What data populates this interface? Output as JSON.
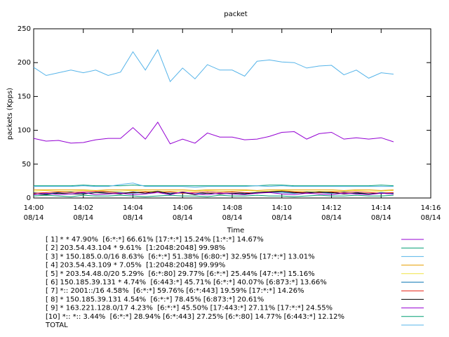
{
  "chart_data": {
    "type": "line",
    "title": "packet",
    "x_label": "Time",
    "y_label": "packets (Kpps)",
    "xlim": [
      0,
      16
    ],
    "ylim": [
      0,
      250
    ],
    "xticks": [
      {
        "value": 0,
        "label": "14:00"
      },
      {
        "value": 2,
        "label": "14:02"
      },
      {
        "value": 4,
        "label": "14:04"
      },
      {
        "value": 6,
        "label": "14:06"
      },
      {
        "value": 8,
        "label": "14:08"
      },
      {
        "value": 10,
        "label": "14:10"
      },
      {
        "value": 12,
        "label": "14:12"
      },
      {
        "value": 14,
        "label": "14:14"
      },
      {
        "value": 16,
        "label": "14:16"
      }
    ],
    "xtick_sublabels": [
      "08/14",
      "08/14",
      "08/14",
      "08/14",
      "08/14",
      "08/14",
      "08/14",
      "08/14",
      "08/14"
    ],
    "yticks": [
      0,
      50,
      100,
      150,
      200,
      250
    ],
    "x": [
      0,
      0.5,
      1,
      1.5,
      2,
      2.5,
      3,
      3.5,
      4,
      4.5,
      5,
      5.5,
      6,
      6.5,
      7,
      7.5,
      8,
      8.5,
      9,
      9.5,
      10,
      10.5,
      11,
      11.5,
      12,
      12.5,
      13,
      13.5,
      14,
      14.5
    ],
    "series": [
      {
        "name": "[ 1] * * 47.90%  [6:*:*] 66.61% [17:*:*] 15.24% [1:*:*] 14.67%",
        "color": "#9400d3",
        "values": [
          88,
          84,
          85,
          81,
          82,
          86,
          88,
          88,
          104,
          87,
          112,
          80,
          87,
          81,
          96,
          90,
          90,
          86,
          87,
          91,
          97,
          98,
          87,
          95,
          97,
          87,
          89,
          87,
          89,
          83
        ]
      },
      {
        "name": "[ 2] 203.54.43.104 * 9.61%  [1:2048:2048] 99.98%",
        "color": "#009e73",
        "values": [
          18,
          18,
          18,
          18,
          19,
          18,
          18,
          18,
          19,
          18,
          18,
          18,
          18,
          18,
          18,
          18,
          18,
          18,
          18,
          19,
          19,
          18,
          18,
          18,
          18,
          18,
          18,
          18,
          19,
          18
        ]
      },
      {
        "name": "[ 3] * 150.185.0.0/16 8.63%  [6:*:*] 51.38% [6:80:*] 32.95% [17:*:*] 13.01%",
        "color": "#56b4e9",
        "values": [
          17,
          17,
          17,
          17,
          18,
          17,
          17,
          20,
          22,
          17,
          17,
          17,
          17,
          16,
          17,
          17,
          17,
          17,
          18,
          17,
          18,
          17,
          17,
          17,
          17,
          17,
          17,
          17,
          17,
          17
        ]
      },
      {
        "name": "[ 4] 203.54.43.109 * 7.05%  [1:2048:2048] 99.99%",
        "color": "#e69f00",
        "values": [
          12,
          12,
          12,
          12,
          12,
          11,
          12,
          12,
          12,
          12,
          12,
          12,
          12,
          11,
          12,
          12,
          12,
          12,
          11,
          12,
          12,
          12,
          12,
          12,
          12,
          11,
          12,
          12,
          11,
          12
        ]
      },
      {
        "name": "[ 5] * 203.54.48.0/20 5.29%  [6:*:80] 29.77% [6:*:*] 25.44% [47:*:*] 15.16%",
        "color": "#f0e442",
        "values": [
          10,
          11,
          10,
          10,
          11,
          11,
          10,
          10,
          11,
          10,
          10,
          10,
          10,
          10,
          11,
          10,
          10,
          11,
          10,
          10,
          11,
          10,
          10,
          10,
          10,
          10,
          11,
          10,
          10,
          11
        ]
      },
      {
        "name": "[ 6] 150.185.39.131 * 4.74%  [6:443:*] 45.71% [6:*:*] 40.07% [6:873:*] 13.66%",
        "color": "#0072b2",
        "values": [
          8,
          6,
          8,
          9,
          7,
          8,
          9,
          8,
          7,
          9,
          8,
          7,
          8,
          6,
          9,
          8,
          9,
          7,
          8,
          9,
          8,
          7,
          9,
          8,
          7,
          9,
          8,
          6,
          8,
          7
        ]
      },
      {
        "name": "[ 7] *:: 2001::/16 4.58%  [6:*:*] 59.76% [6:*:443] 19.59% [17:*:*] 14.26%",
        "color": "#e51e10",
        "values": [
          7,
          8,
          9,
          8,
          9,
          10,
          9,
          7,
          8,
          9,
          8,
          9,
          7,
          8,
          9,
          8,
          9,
          8,
          7,
          9,
          10,
          9,
          8,
          8,
          9,
          8,
          9,
          8,
          7,
          8
        ]
      },
      {
        "name": "[ 8] * 150.185.39.131 4.54%  [6:*:*] 78.45% [6:873:*] 20.61%",
        "color": "#000000",
        "values": [
          6,
          5,
          7,
          6,
          6,
          8,
          7,
          6,
          9,
          7,
          10,
          6,
          8,
          5,
          7,
          6,
          7,
          6,
          8,
          9,
          10,
          8,
          7,
          9,
          8,
          6,
          7,
          6,
          7,
          6
        ]
      },
      {
        "name": "[ 9] * 163.221.128.0/17 4.23%  [6:*:*] 45.50% [17:443:*] 27.11% [17:*:*] 24.55%",
        "color": "#9400d3",
        "values": [
          5,
          7,
          5,
          6,
          8,
          5,
          6,
          7,
          5,
          6,
          8,
          5,
          9,
          6,
          5,
          7,
          6,
          5,
          7,
          8,
          6,
          5,
          7,
          6,
          5,
          7,
          6,
          5,
          7,
          6
        ]
      },
      {
        "name": "[10] *:: *:: 3.44%  [6:*:*] 28.94% [6:*:443] 27.25% [6:*:80] 14.77% [6:443:*] 12.12%",
        "color": "#009e73",
        "values": [
          3,
          4,
          3,
          2,
          4,
          3,
          3,
          4,
          3,
          2,
          3,
          4,
          3,
          3,
          2,
          4,
          3,
          3,
          4,
          3,
          3,
          2,
          3,
          4,
          3,
          3,
          4,
          3,
          3,
          4
        ]
      },
      {
        "name": "TOTAL",
        "color": "#56b4e9",
        "values": [
          193,
          181,
          185,
          189,
          185,
          189,
          181,
          186,
          216,
          189,
          219,
          172,
          192,
          176,
          197,
          189,
          189,
          180,
          202,
          204,
          201,
          200,
          192,
          195,
          196,
          182,
          189,
          177,
          185,
          183
        ]
      }
    ]
  }
}
